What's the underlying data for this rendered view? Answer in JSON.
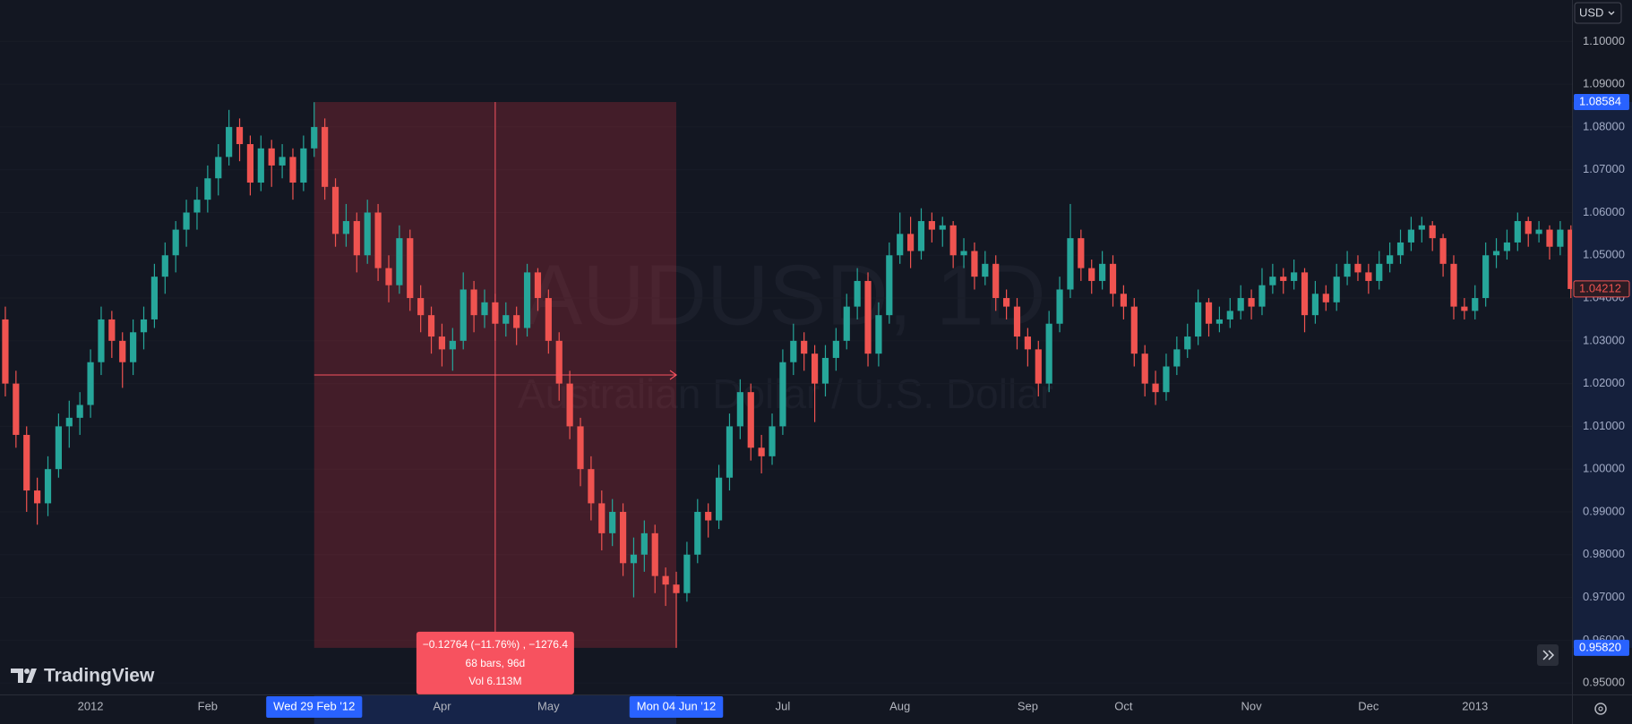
{
  "chart_data": {
    "type": "candlestick",
    "symbol": "AUDUSD, 1D",
    "description": "Australian Dollar / U.S. Dollar",
    "currency": "USD",
    "brand": "TradingView",
    "up_color": "#26a69a",
    "down_color": "#ef5350",
    "grid": true,
    "ylim": [
      0.9473,
      1.1097
    ],
    "yticks": [
      {
        "value": 0.95,
        "label": "0.95000"
      },
      {
        "value": 0.96,
        "label": "0.96000"
      },
      {
        "value": 0.97,
        "label": "0.97000"
      },
      {
        "value": 0.98,
        "label": "0.98000"
      },
      {
        "value": 0.99,
        "label": "0.99000"
      },
      {
        "value": 1.0,
        "label": "1.00000"
      },
      {
        "value": 1.01,
        "label": "1.01000"
      },
      {
        "value": 1.02,
        "label": "1.02000"
      },
      {
        "value": 1.03,
        "label": "1.03000"
      },
      {
        "value": 1.04,
        "label": "1.04000"
      },
      {
        "value": 1.05,
        "label": "1.05000"
      },
      {
        "value": 1.06,
        "label": "1.06000"
      },
      {
        "value": 1.07,
        "label": "1.07000"
      },
      {
        "value": 1.08,
        "label": "1.08000"
      },
      {
        "value": 1.09,
        "label": "1.09000"
      },
      {
        "value": 1.1,
        "label": "1.10000"
      }
    ],
    "categories": [
      null,
      null,
      null,
      null,
      null,
      null,
      null,
      null,
      "2012",
      null,
      null,
      null,
      null,
      null,
      null,
      null,
      null,
      null,
      null,
      "Feb",
      null,
      null,
      null,
      null,
      null,
      null,
      null,
      null,
      null,
      "Wed 29 Feb '12",
      null,
      null,
      null,
      null,
      null,
      null,
      null,
      null,
      null,
      null,
      null,
      "Apr",
      null,
      null,
      null,
      null,
      null,
      null,
      null,
      null,
      null,
      "May",
      null,
      null,
      null,
      null,
      null,
      null,
      null,
      null,
      null,
      null,
      null,
      "Mon 04 Jun '12",
      null,
      null,
      null,
      null,
      null,
      null,
      null,
      null,
      null,
      "Jul",
      null,
      null,
      null,
      null,
      null,
      null,
      null,
      null,
      null,
      null,
      "Aug",
      null,
      null,
      null,
      null,
      null,
      null,
      null,
      null,
      null,
      null,
      null,
      "Sep",
      null,
      null,
      null,
      null,
      null,
      null,
      null,
      null,
      "Oct",
      null,
      null,
      null,
      null,
      null,
      null,
      null,
      null,
      null,
      null,
      null,
      "Nov",
      null,
      null,
      null,
      null,
      null,
      null,
      null,
      null,
      null,
      null,
      "Dec",
      null,
      null,
      null,
      null,
      null,
      null,
      null,
      null,
      null,
      "2013",
      null,
      null,
      null,
      null,
      null,
      null,
      null,
      null,
      null
    ],
    "ohlc": [
      [
        1.035,
        1.038,
        1.017,
        1.02
      ],
      [
        1.02,
        1.023,
        1.005,
        1.008
      ],
      [
        1.008,
        1.01,
        0.99,
        0.995
      ],
      [
        0.995,
        0.998,
        0.987,
        0.992
      ],
      [
        0.992,
        1.003,
        0.989,
        1.0
      ],
      [
        1.0,
        1.013,
        0.998,
        1.01
      ],
      [
        1.01,
        1.016,
        1.005,
        1.012
      ],
      [
        1.012,
        1.018,
        1.008,
        1.015
      ],
      [
        1.015,
        1.028,
        1.012,
        1.025
      ],
      [
        1.025,
        1.038,
        1.022,
        1.035
      ],
      [
        1.035,
        1.037,
        1.026,
        1.03
      ],
      [
        1.03,
        1.032,
        1.019,
        1.025
      ],
      [
        1.025,
        1.035,
        1.022,
        1.032
      ],
      [
        1.032,
        1.038,
        1.028,
        1.035
      ],
      [
        1.035,
        1.048,
        1.033,
        1.045
      ],
      [
        1.045,
        1.053,
        1.041,
        1.05
      ],
      [
        1.05,
        1.058,
        1.046,
        1.056
      ],
      [
        1.056,
        1.063,
        1.052,
        1.06
      ],
      [
        1.06,
        1.066,
        1.056,
        1.063
      ],
      [
        1.063,
        1.071,
        1.06,
        1.068
      ],
      [
        1.068,
        1.076,
        1.064,
        1.073
      ],
      [
        1.073,
        1.084,
        1.071,
        1.08
      ],
      [
        1.08,
        1.082,
        1.072,
        1.076
      ],
      [
        1.076,
        1.078,
        1.064,
        1.067
      ],
      [
        1.067,
        1.078,
        1.065,
        1.075
      ],
      [
        1.075,
        1.077,
        1.066,
        1.071
      ],
      [
        1.071,
        1.076,
        1.068,
        1.073
      ],
      [
        1.073,
        1.075,
        1.063,
        1.067
      ],
      [
        1.067,
        1.078,
        1.065,
        1.075
      ],
      [
        1.075,
        1.0858,
        1.073,
        1.08
      ],
      [
        1.08,
        1.082,
        1.063,
        1.066
      ],
      [
        1.066,
        1.068,
        1.052,
        1.055
      ],
      [
        1.055,
        1.062,
        1.052,
        1.058
      ],
      [
        1.058,
        1.06,
        1.046,
        1.05
      ],
      [
        1.05,
        1.063,
        1.048,
        1.06
      ],
      [
        1.06,
        1.062,
        1.044,
        1.047
      ],
      [
        1.047,
        1.05,
        1.039,
        1.043
      ],
      [
        1.043,
        1.057,
        1.041,
        1.054
      ],
      [
        1.054,
        1.056,
        1.037,
        1.04
      ],
      [
        1.04,
        1.043,
        1.032,
        1.036
      ],
      [
        1.036,
        1.038,
        1.027,
        1.031
      ],
      [
        1.031,
        1.034,
        1.024,
        1.028
      ],
      [
        1.028,
        1.033,
        1.023,
        1.03
      ],
      [
        1.03,
        1.046,
        1.028,
        1.042
      ],
      [
        1.042,
        1.044,
        1.032,
        1.036
      ],
      [
        1.036,
        1.042,
        1.033,
        1.039
      ],
      [
        1.039,
        1.041,
        1.03,
        1.034
      ],
      [
        1.034,
        1.039,
        1.031,
        1.036
      ],
      [
        1.036,
        1.038,
        1.029,
        1.033
      ],
      [
        1.033,
        1.048,
        1.031,
        1.046
      ],
      [
        1.046,
        1.047,
        1.037,
        1.04
      ],
      [
        1.04,
        1.042,
        1.027,
        1.03
      ],
      [
        1.03,
        1.032,
        1.016,
        1.02
      ],
      [
        1.02,
        1.023,
        1.007,
        1.01
      ],
      [
        1.01,
        1.012,
        0.996,
        1.0
      ],
      [
        1.0,
        1.003,
        0.988,
        0.992
      ],
      [
        0.992,
        0.995,
        0.981,
        0.985
      ],
      [
        0.985,
        0.993,
        0.982,
        0.99
      ],
      [
        0.99,
        0.992,
        0.975,
        0.978
      ],
      [
        0.978,
        0.984,
        0.97,
        0.98
      ],
      [
        0.98,
        0.988,
        0.976,
        0.985
      ],
      [
        0.985,
        0.987,
        0.971,
        0.975
      ],
      [
        0.975,
        0.977,
        0.968,
        0.973
      ],
      [
        0.973,
        0.976,
        0.9582,
        0.971
      ],
      [
        0.971,
        0.983,
        0.969,
        0.98
      ],
      [
        0.98,
        0.993,
        0.978,
        0.99
      ],
      [
        0.99,
        0.992,
        0.984,
        0.988
      ],
      [
        0.988,
        1.001,
        0.986,
        0.998
      ],
      [
        0.998,
        1.013,
        0.995,
        1.01
      ],
      [
        1.01,
        1.021,
        1.007,
        1.018
      ],
      [
        1.018,
        1.02,
        1.002,
        1.005
      ],
      [
        1.005,
        1.008,
        0.999,
        1.003
      ],
      [
        1.003,
        1.013,
        1.001,
        1.01
      ],
      [
        1.01,
        1.028,
        1.008,
        1.025
      ],
      [
        1.025,
        1.034,
        1.022,
        1.03
      ],
      [
        1.03,
        1.032,
        1.023,
        1.027
      ],
      [
        1.027,
        1.029,
        1.011,
        1.02
      ],
      [
        1.02,
        1.029,
        1.017,
        1.026
      ],
      [
        1.026,
        1.033,
        1.023,
        1.03
      ],
      [
        1.03,
        1.041,
        1.028,
        1.038
      ],
      [
        1.038,
        1.047,
        1.035,
        1.044
      ],
      [
        1.044,
        1.046,
        1.024,
        1.027
      ],
      [
        1.027,
        1.039,
        1.024,
        1.036
      ],
      [
        1.036,
        1.053,
        1.034,
        1.05
      ],
      [
        1.05,
        1.06,
        1.048,
        1.055
      ],
      [
        1.055,
        1.059,
        1.047,
        1.051
      ],
      [
        1.051,
        1.061,
        1.049,
        1.058
      ],
      [
        1.058,
        1.06,
        1.053,
        1.056
      ],
      [
        1.056,
        1.059,
        1.052,
        1.057
      ],
      [
        1.057,
        1.058,
        1.047,
        1.05
      ],
      [
        1.05,
        1.054,
        1.047,
        1.051
      ],
      [
        1.051,
        1.053,
        1.042,
        1.045
      ],
      [
        1.045,
        1.051,
        1.043,
        1.048
      ],
      [
        1.048,
        1.05,
        1.037,
        1.04
      ],
      [
        1.04,
        1.042,
        1.035,
        1.038
      ],
      [
        1.038,
        1.04,
        1.028,
        1.031
      ],
      [
        1.031,
        1.033,
        1.024,
        1.028
      ],
      [
        1.028,
        1.03,
        1.017,
        1.02
      ],
      [
        1.02,
        1.037,
        1.018,
        1.034
      ],
      [
        1.034,
        1.045,
        1.032,
        1.042
      ],
      [
        1.042,
        1.062,
        1.04,
        1.054
      ],
      [
        1.054,
        1.056,
        1.044,
        1.047
      ],
      [
        1.047,
        1.049,
        1.041,
        1.044
      ],
      [
        1.044,
        1.051,
        1.042,
        1.048
      ],
      [
        1.048,
        1.05,
        1.038,
        1.041
      ],
      [
        1.041,
        1.043,
        1.035,
        1.038
      ],
      [
        1.038,
        1.04,
        1.024,
        1.027
      ],
      [
        1.027,
        1.029,
        1.017,
        1.02
      ],
      [
        1.02,
        1.023,
        1.015,
        1.018
      ],
      [
        1.018,
        1.027,
        1.016,
        1.024
      ],
      [
        1.024,
        1.031,
        1.022,
        1.028
      ],
      [
        1.028,
        1.034,
        1.026,
        1.031
      ],
      [
        1.031,
        1.042,
        1.029,
        1.039
      ],
      [
        1.039,
        1.04,
        1.031,
        1.034
      ],
      [
        1.034,
        1.038,
        1.032,
        1.035
      ],
      [
        1.035,
        1.04,
        1.033,
        1.037
      ],
      [
        1.037,
        1.043,
        1.035,
        1.04
      ],
      [
        1.04,
        1.042,
        1.035,
        1.038
      ],
      [
        1.038,
        1.047,
        1.036,
        1.043
      ],
      [
        1.043,
        1.048,
        1.041,
        1.045
      ],
      [
        1.045,
        1.047,
        1.041,
        1.044
      ],
      [
        1.044,
        1.049,
        1.042,
        1.046
      ],
      [
        1.046,
        1.047,
        1.032,
        1.036
      ],
      [
        1.036,
        1.044,
        1.034,
        1.041
      ],
      [
        1.041,
        1.043,
        1.037,
        1.039
      ],
      [
        1.039,
        1.048,
        1.037,
        1.045
      ],
      [
        1.045,
        1.051,
        1.043,
        1.048
      ],
      [
        1.048,
        1.05,
        1.044,
        1.046
      ],
      [
        1.046,
        1.048,
        1.041,
        1.044
      ],
      [
        1.044,
        1.051,
        1.042,
        1.048
      ],
      [
        1.048,
        1.053,
        1.046,
        1.05
      ],
      [
        1.05,
        1.056,
        1.048,
        1.053
      ],
      [
        1.053,
        1.059,
        1.051,
        1.056
      ],
      [
        1.056,
        1.059,
        1.053,
        1.057
      ],
      [
        1.057,
        1.058,
        1.051,
        1.054
      ],
      [
        1.054,
        1.055,
        1.045,
        1.048
      ],
      [
        1.048,
        1.05,
        1.035,
        1.038
      ],
      [
        1.038,
        1.04,
        1.035,
        1.037
      ],
      [
        1.037,
        1.043,
        1.035,
        1.04
      ],
      [
        1.04,
        1.053,
        1.038,
        1.05
      ],
      [
        1.05,
        1.054,
        1.047,
        1.051
      ],
      [
        1.051,
        1.056,
        1.049,
        1.053
      ],
      [
        1.053,
        1.06,
        1.051,
        1.058
      ],
      [
        1.058,
        1.059,
        1.052,
        1.055
      ],
      [
        1.055,
        1.058,
        1.053,
        1.056
      ],
      [
        1.056,
        1.057,
        1.049,
        1.052
      ],
      [
        1.052,
        1.058,
        1.05,
        1.056
      ],
      [
        1.056,
        1.057,
        1.04,
        1.04212
      ]
    ],
    "measure": {
      "high": 1.08584,
      "low": {
        "value": 0.9582,
        "label": "0.95820"
      },
      "change": "−0.12764 (−11.76%) , −1276.4",
      "bars": "68 bars, 96d",
      "volume": "Vol 6.113M"
    }
  }
}
